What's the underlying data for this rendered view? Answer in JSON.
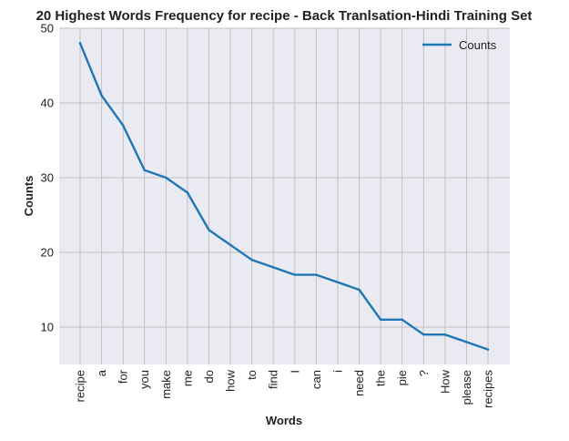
{
  "chart_data": {
    "type": "line",
    "title": "20 Highest Words Frequency for recipe - Back Tranlsation-Hindi Training Set",
    "xlabel": "Words",
    "ylabel": "Counts",
    "categories": [
      "recipe",
      "a",
      "for",
      "you",
      "make",
      "me",
      "do",
      "how",
      "to",
      "find",
      "I",
      "can",
      "i",
      "need",
      "the",
      "pie",
      "?",
      "How",
      "please",
      "recipes"
    ],
    "series": [
      {
        "name": "Counts",
        "color": "#1f77b4",
        "values": [
          48,
          41,
          37,
          31,
          30,
          28,
          23,
          21,
          19,
          18,
          17,
          17,
          16,
          15,
          11,
          11,
          9,
          9,
          8,
          7
        ]
      }
    ],
    "ylim": [
      5,
      50
    ],
    "yticks": [
      10,
      20,
      30,
      40,
      50
    ],
    "grid": true,
    "legend": "top-right",
    "background_color": "#eaeaf2",
    "grid_color": "#c0c0c0"
  }
}
